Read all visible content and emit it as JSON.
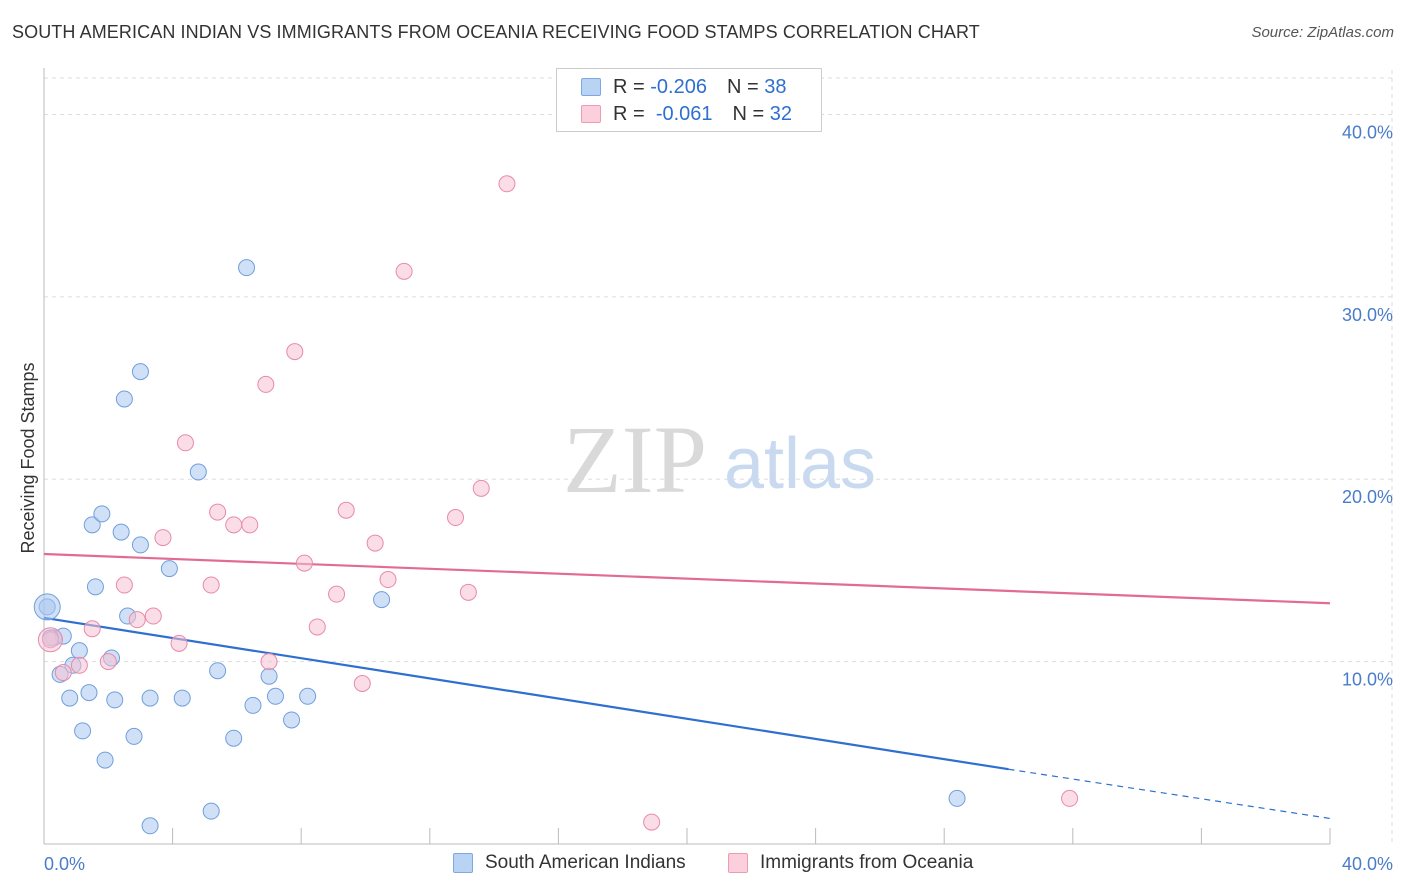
{
  "title": "SOUTH AMERICAN INDIAN VS IMMIGRANTS FROM OCEANIA RECEIVING FOOD STAMPS CORRELATION CHART",
  "source": "Source: ZipAtlas.com",
  "watermark": {
    "zip": "ZIP",
    "atlas": "atlas"
  },
  "legend": {
    "rows": [
      {
        "r_label": "R =",
        "r_value": "-0.206",
        "n_label": "N =",
        "n_value": "38"
      },
      {
        "r_label": "R =",
        "r_value": "-0.061",
        "n_label": "N =",
        "n_value": "32"
      }
    ]
  },
  "chart_data": {
    "type": "scatter",
    "title": "SOUTH AMERICAN INDIAN VS IMMIGRANTS FROM OCEANIA RECEIVING FOOD STAMPS CORRELATION CHART",
    "xlabel": "",
    "ylabel": "Receiving Food Stamps",
    "xlim": [
      0,
      40
    ],
    "ylim": [
      0,
      42
    ],
    "x_tick_labels": [
      {
        "value": 0,
        "label": "0.0%"
      },
      {
        "value": 40,
        "label": "40.0%"
      }
    ],
    "y_tick_labels": [
      {
        "value": 10,
        "label": "10.0%"
      },
      {
        "value": 20,
        "label": "20.0%"
      },
      {
        "value": 30,
        "label": "30.0%"
      },
      {
        "value": 40,
        "label": "40.0%"
      }
    ],
    "grid": true,
    "series": [
      {
        "name": "South American Indians",
        "color": "#a9c7f0",
        "stroke": "#6f9fdc",
        "trend_color": "#2e6fd0",
        "trend": {
          "x0": 0,
          "y0": 12.4,
          "x1": 30,
          "y1": 4.1,
          "dash_to_x": 40,
          "dash_to_y": 1.4
        },
        "points": [
          [
            0.1,
            13.0
          ],
          [
            0.3,
            11.3
          ],
          [
            0.5,
            9.3
          ],
          [
            0.6,
            11.4
          ],
          [
            0.8,
            8.0
          ],
          [
            0.9,
            9.8
          ],
          [
            1.1,
            10.6
          ],
          [
            1.2,
            6.2
          ],
          [
            1.4,
            8.3
          ],
          [
            1.5,
            17.5
          ],
          [
            1.6,
            14.1
          ],
          [
            1.8,
            18.1
          ],
          [
            1.9,
            4.6
          ],
          [
            2.1,
            10.2
          ],
          [
            2.2,
            7.9
          ],
          [
            2.4,
            17.1
          ],
          [
            2.5,
            24.4
          ],
          [
            2.6,
            12.5
          ],
          [
            2.8,
            5.9
          ],
          [
            3.0,
            25.9
          ],
          [
            3.0,
            16.4
          ],
          [
            3.3,
            8.0
          ],
          [
            3.3,
            1.0
          ],
          [
            3.9,
            15.1
          ],
          [
            4.3,
            8.0
          ],
          [
            4.8,
            20.4
          ],
          [
            5.2,
            1.8
          ],
          [
            5.4,
            9.5
          ],
          [
            5.9,
            5.8
          ],
          [
            6.3,
            31.6
          ],
          [
            6.5,
            7.6
          ],
          [
            7.0,
            9.2
          ],
          [
            7.2,
            8.1
          ],
          [
            7.7,
            6.8
          ],
          [
            8.2,
            8.1
          ],
          [
            10.5,
            13.4
          ],
          [
            28.4,
            2.5
          ],
          [
            0.2,
            11.3
          ]
        ]
      },
      {
        "name": "Immigrants from Oceania",
        "color": "#f6c1d2",
        "stroke": "#e88aa9",
        "trend_color": "#e26b93",
        "trend": {
          "x0": 0,
          "y0": 15.9,
          "x1": 40,
          "y1": 13.2
        },
        "points": [
          [
            0.2,
            11.2
          ],
          [
            0.6,
            9.4
          ],
          [
            1.1,
            9.8
          ],
          [
            1.5,
            11.8
          ],
          [
            2.0,
            10.0
          ],
          [
            2.5,
            14.2
          ],
          [
            2.9,
            12.3
          ],
          [
            3.4,
            12.5
          ],
          [
            3.7,
            16.8
          ],
          [
            4.2,
            11.0
          ],
          [
            4.4,
            22.0
          ],
          [
            5.2,
            14.2
          ],
          [
            5.4,
            18.2
          ],
          [
            5.9,
            17.5
          ],
          [
            6.4,
            17.5
          ],
          [
            6.9,
            25.2
          ],
          [
            7.0,
            10.0
          ],
          [
            7.8,
            27.0
          ],
          [
            8.1,
            15.4
          ],
          [
            8.5,
            11.9
          ],
          [
            9.1,
            13.7
          ],
          [
            9.4,
            18.3
          ],
          [
            9.9,
            8.8
          ],
          [
            10.3,
            16.5
          ],
          [
            10.7,
            14.5
          ],
          [
            11.2,
            31.4
          ],
          [
            12.8,
            17.9
          ],
          [
            13.2,
            13.8
          ],
          [
            13.6,
            19.5
          ],
          [
            14.4,
            36.2
          ],
          [
            18.9,
            1.2
          ],
          [
            31.9,
            2.5
          ]
        ]
      }
    ]
  }
}
